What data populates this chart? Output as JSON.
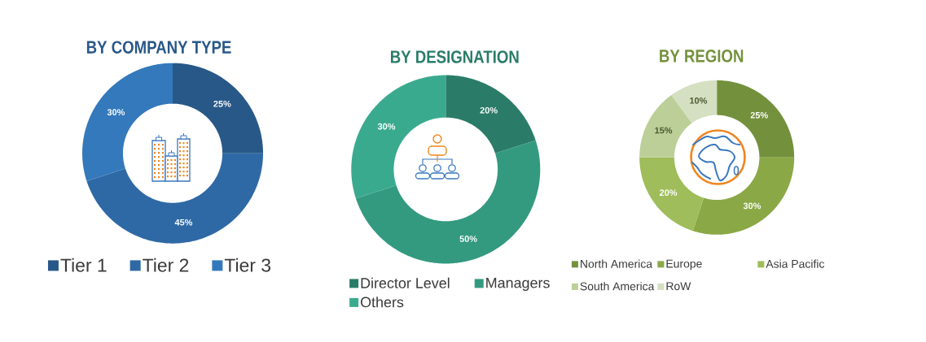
{
  "chart_data": [
    {
      "type": "donut",
      "title": "BY COMPANY TYPE",
      "categories": [
        "Tier 1",
        "Tier 2",
        "Tier 3"
      ],
      "values": [
        25,
        45,
        30
      ],
      "colors": [
        "#285888",
        "#2e69a5",
        "#3479bb"
      ],
      "value_labels": [
        "25%",
        "45%",
        "30%"
      ],
      "legend": "bottom"
    },
    {
      "type": "donut",
      "title": "BY DESIGNATION",
      "categories": [
        "Director Level",
        "Managers",
        "Others"
      ],
      "values": [
        20,
        50,
        30
      ],
      "colors": [
        "#2a7c68",
        "#339a80",
        "#3aaa8f"
      ],
      "value_labels": [
        "20%",
        "50%",
        "30%"
      ],
      "legend": "bottom"
    },
    {
      "type": "donut",
      "title": "BY REGION",
      "categories": [
        "North America",
        "Europe",
        "Asia Pacific",
        "South America",
        "RoW"
      ],
      "values": [
        25,
        30,
        20,
        15,
        10
      ],
      "colors": [
        "#73913c",
        "#8aa845",
        "#9fbd5a",
        "#bccf98",
        "#d5dfc2"
      ],
      "value_labels": [
        "25%",
        "30%",
        "20%",
        "15%",
        "10%"
      ],
      "legend": "bottom"
    }
  ]
}
